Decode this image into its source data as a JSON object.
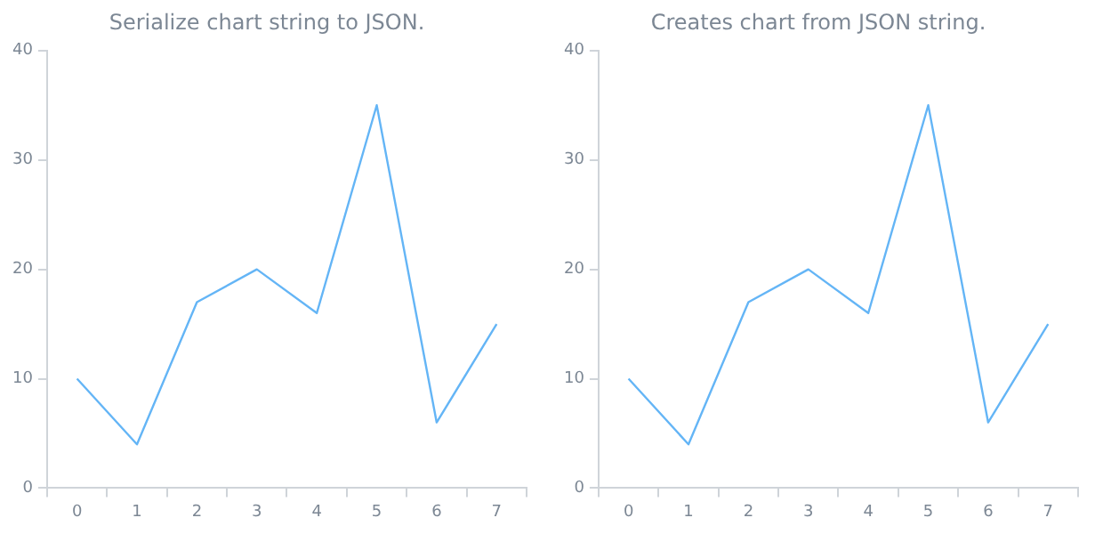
{
  "chart_data": [
    {
      "type": "line",
      "title": "Serialize chart string to JSON.",
      "categories": [
        "0",
        "1",
        "2",
        "3",
        "4",
        "5",
        "6",
        "7"
      ],
      "series": [
        {
          "color": "#64b5f6",
          "values": [
            10,
            4,
            17,
            20,
            16,
            35,
            6,
            15
          ]
        }
      ],
      "ylim": [
        0,
        40
      ],
      "yticks": [
        0,
        10,
        20,
        30,
        40
      ],
      "grid": false,
      "legend": false,
      "marker": "none"
    },
    {
      "type": "line",
      "title": "Creates chart from JSON string.",
      "categories": [
        "0",
        "1",
        "2",
        "3",
        "4",
        "5",
        "6",
        "7"
      ],
      "series": [
        {
          "color": "#64b5f6",
          "values": [
            10,
            4,
            17,
            20,
            16,
            35,
            6,
            15
          ]
        }
      ],
      "ylim": [
        0,
        40
      ],
      "yticks": [
        0,
        10,
        20,
        30,
        40
      ],
      "grid": false,
      "legend": false,
      "marker": "none"
    }
  ]
}
